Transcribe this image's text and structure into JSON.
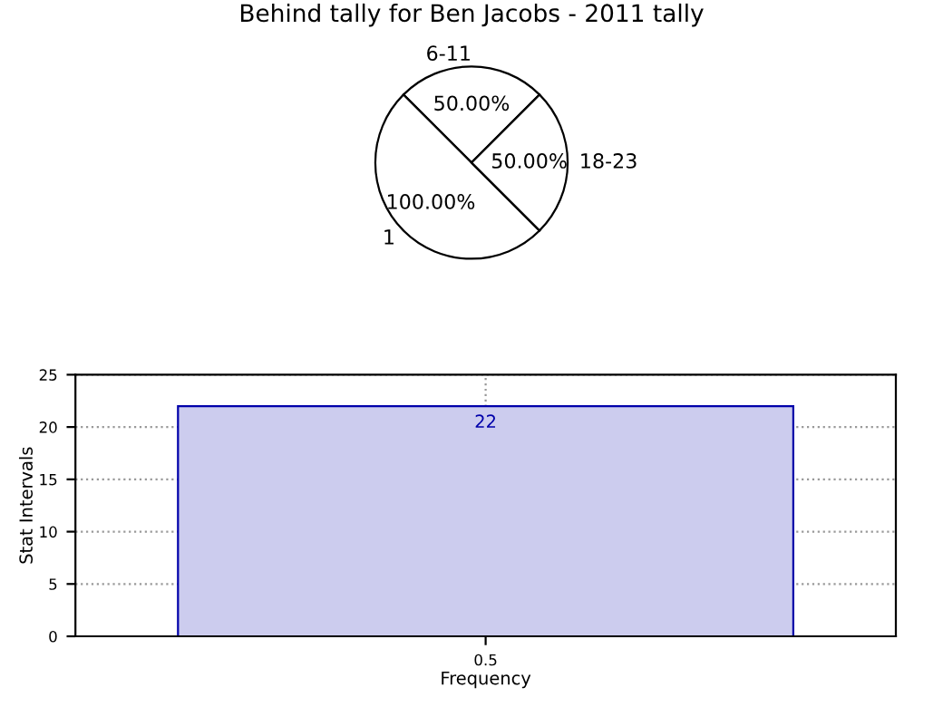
{
  "chart_data": [
    {
      "type": "pie",
      "title": "Behind tally for Ben Jacobs - 2011 tally",
      "categories": [
        "6-11",
        "1",
        "18-23"
      ],
      "values": [
        50,
        100,
        50
      ],
      "value_labels": [
        "50.00%",
        "100.00%",
        "50.00%"
      ],
      "colors": [
        "#ffffff",
        "#ffffff",
        "#ffffff"
      ]
    },
    {
      "type": "bar",
      "categories": [
        "0.5"
      ],
      "values": [
        22
      ],
      "color": "#ccccee",
      "xlabel": "Frequency",
      "ylabel": "Stat Intervals",
      "ylim": [
        0,
        25
      ],
      "yticks": [
        0,
        5,
        10,
        15,
        20,
        25
      ],
      "grid": true,
      "data_labels": true
    }
  ]
}
